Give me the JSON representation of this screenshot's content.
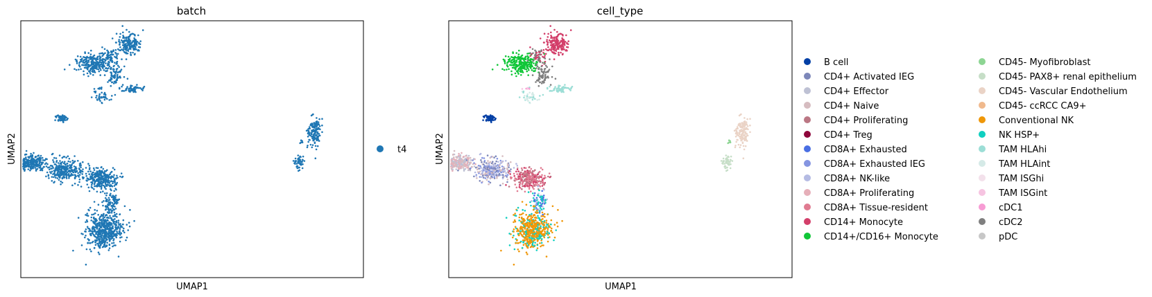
{
  "chart_data": [
    {
      "type": "scatter",
      "title": "batch",
      "xlabel": "UMAP1",
      "ylabel": "UMAP2",
      "xticks": false,
      "yticks": false,
      "grid": false,
      "legend_position": "right",
      "series": [
        {
          "name": "t4",
          "color": "#1f77b4"
        }
      ]
    },
    {
      "type": "scatter",
      "title": "cell_type",
      "xlabel": "UMAP1",
      "ylabel": "UMAP2",
      "xticks": false,
      "yticks": false,
      "grid": false,
      "legend_position": "right",
      "series": [
        {
          "name": "B cell",
          "color": "#023fa5"
        },
        {
          "name": "CD4+ Activated IEG",
          "color": "#7d87b9"
        },
        {
          "name": "CD4+ Effector",
          "color": "#bec1d4"
        },
        {
          "name": "CD4+ Naive",
          "color": "#d6bcc0"
        },
        {
          "name": "CD4+ Proliferating",
          "color": "#bb7784"
        },
        {
          "name": "CD4+ Treg",
          "color": "#8e063b"
        },
        {
          "name": "CD8A+ Exhausted",
          "color": "#4a6fe3"
        },
        {
          "name": "CD8A+ Exhausted IEG",
          "color": "#8595e1"
        },
        {
          "name": "CD8A+ NK-like",
          "color": "#b5bbe3"
        },
        {
          "name": "CD8A+ Proliferating",
          "color": "#e6afb9"
        },
        {
          "name": "CD8A+ Tissue-resident",
          "color": "#e07b91"
        },
        {
          "name": "CD14+ Monocyte",
          "color": "#d33f6a"
        },
        {
          "name": "CD14+/CD16+ Monocyte",
          "color": "#11c638"
        },
        {
          "name": "CD45- Myofibroblast",
          "color": "#8dd593"
        },
        {
          "name": "CD45- PAX8+ renal epithelium",
          "color": "#c6dec7"
        },
        {
          "name": "CD45- Vascular Endothelium",
          "color": "#ead3c6"
        },
        {
          "name": "CD45- ccRCC CA9+",
          "color": "#f0b98d"
        },
        {
          "name": "Conventional NK",
          "color": "#ef9708"
        },
        {
          "name": "NK HSP+",
          "color": "#0fcfc0"
        },
        {
          "name": "TAM HLAhi",
          "color": "#9cded6"
        },
        {
          "name": "TAM HLAint",
          "color": "#d5eae7"
        },
        {
          "name": "TAM ISGhi",
          "color": "#f3e1eb"
        },
        {
          "name": "TAM ISGint",
          "color": "#f6c4e1"
        },
        {
          "name": "cDC1",
          "color": "#f79cd4"
        },
        {
          "name": "cDC2",
          "color": "#7f7f7f"
        },
        {
          "name": "pDC",
          "color": "#c7c7c7"
        }
      ]
    }
  ]
}
